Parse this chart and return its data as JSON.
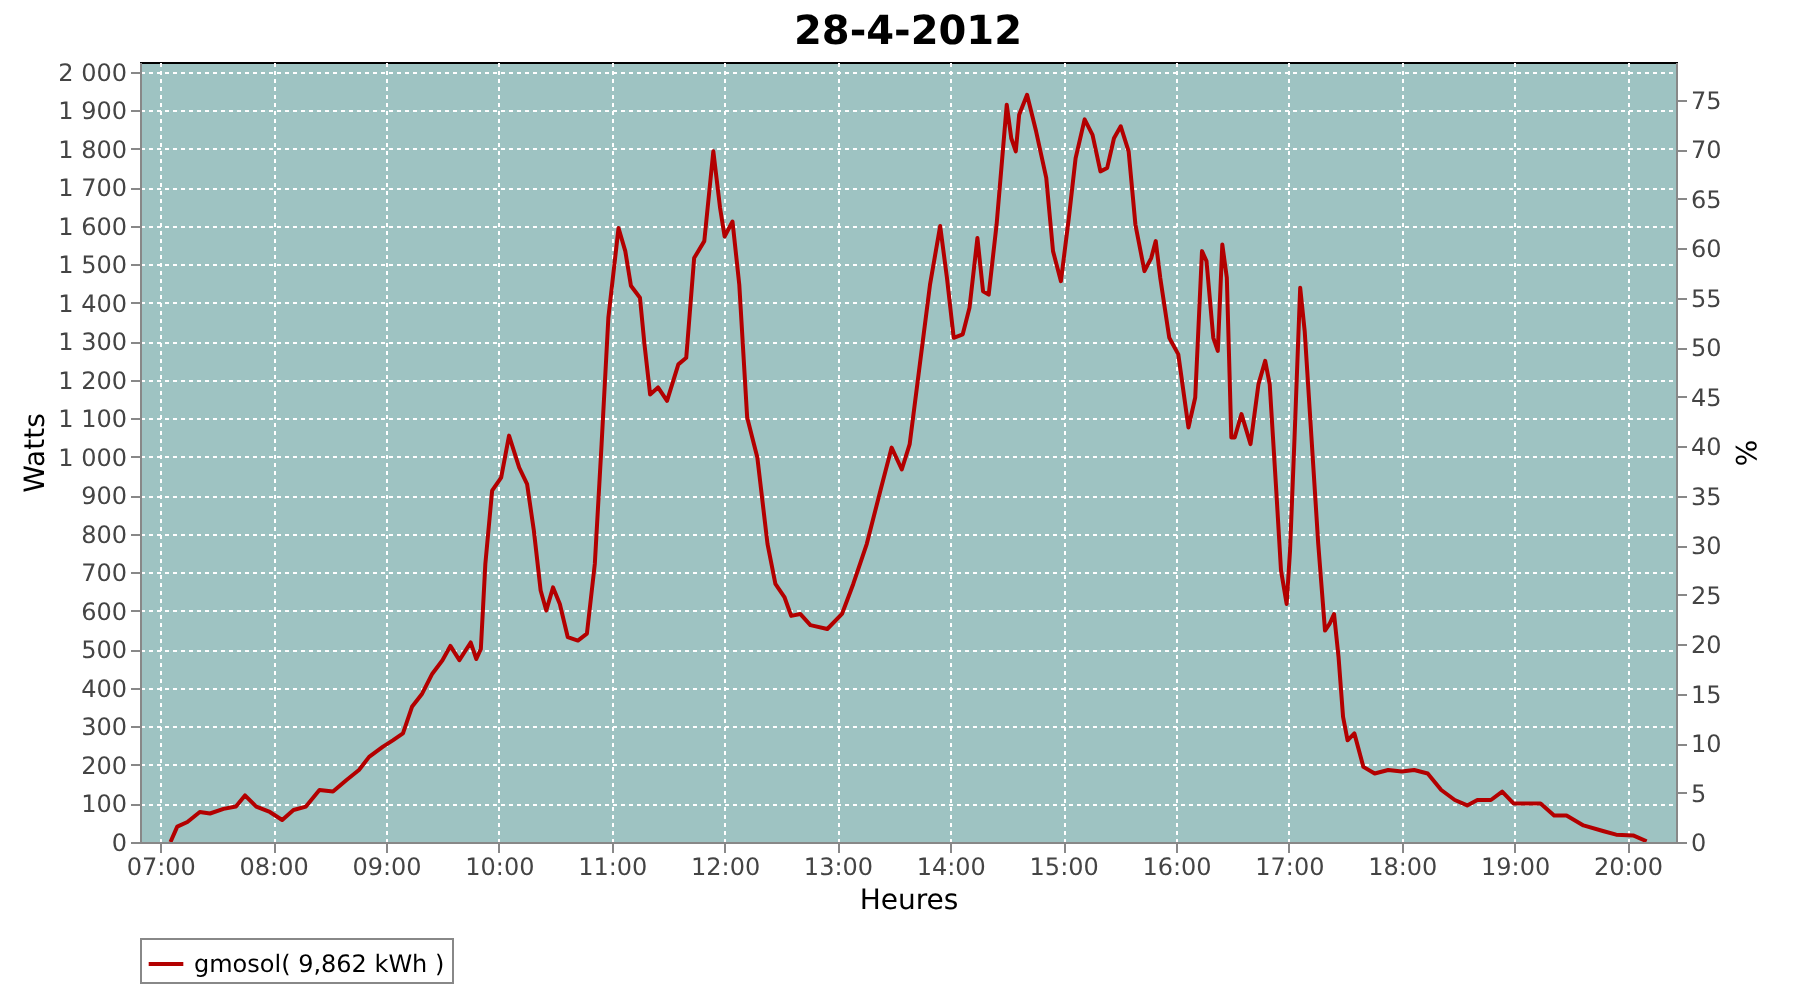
{
  "chart_data": {
    "type": "line",
    "title": "28-4-2012",
    "xlabel": "Heures",
    "ylabel": "Watts",
    "y2label": "%",
    "xlim": [
      6.82,
      20.43
    ],
    "xticks": [
      {
        "value": 7,
        "label": "07:00"
      },
      {
        "value": 8,
        "label": "08:00"
      },
      {
        "value": 9,
        "label": "09:00"
      },
      {
        "value": 10,
        "label": "10:00"
      },
      {
        "value": 11,
        "label": "11:00"
      },
      {
        "value": 12,
        "label": "12:00"
      },
      {
        "value": 13,
        "label": "13:00"
      },
      {
        "value": 14,
        "label": "14:00"
      },
      {
        "value": 15,
        "label": "15:00"
      },
      {
        "value": 16,
        "label": "16:00"
      },
      {
        "value": 17,
        "label": "17:00"
      },
      {
        "value": 18,
        "label": "18:00"
      },
      {
        "value": 19,
        "label": "19:00"
      },
      {
        "value": 20,
        "label": "20:00"
      }
    ],
    "ylim": [
      0,
      2025
    ],
    "yticks": [
      0,
      100,
      200,
      300,
      400,
      500,
      600,
      700,
      800,
      900,
      {
        "value": 1000,
        "label": "1 000"
      },
      {
        "value": 1100,
        "label": "1 100"
      },
      {
        "value": 1200,
        "label": "1 200"
      },
      {
        "value": 1300,
        "label": "1 300"
      },
      {
        "value": 1400,
        "label": "1 400"
      },
      {
        "value": 1500,
        "label": "1 500"
      },
      {
        "value": 1600,
        "label": "1 600"
      },
      {
        "value": 1700,
        "label": "1 700"
      },
      {
        "value": 1800,
        "label": "1 800"
      },
      {
        "value": 1900,
        "label": "1 900"
      },
      {
        "value": 2000,
        "label": "2 000"
      }
    ],
    "y2lim": [
      0,
      78.8
    ],
    "y2ticks": [
      0,
      5,
      10,
      15,
      20,
      25,
      30,
      35,
      40,
      45,
      50,
      55,
      60,
      65,
      70,
      75
    ],
    "grid": true,
    "legend": "bottom",
    "marker": "none",
    "line_style": "solid",
    "series": [
      {
        "name": "gmosol( 9,862 kWh )",
        "color": "#b30000",
        "x": [
          7.09,
          7.15,
          7.24,
          7.35,
          7.44,
          7.56,
          7.67,
          7.75,
          7.85,
          7.97,
          8.08,
          8.18,
          8.29,
          8.41,
          8.53,
          8.65,
          8.76,
          8.85,
          8.97,
          9.06,
          9.15,
          9.23,
          9.32,
          9.41,
          9.5,
          9.57,
          9.65,
          9.75,
          9.8,
          9.84,
          9.88,
          9.94,
          10.02,
          10.09,
          10.18,
          10.25,
          10.31,
          10.37,
          10.42,
          10.48,
          10.54,
          10.61,
          10.7,
          10.78,
          10.85,
          10.91,
          10.97,
          11.06,
          11.12,
          11.17,
          11.25,
          11.29,
          11.34,
          11.41,
          11.49,
          11.59,
          11.66,
          11.73,
          11.82,
          11.9,
          11.96,
          12.0,
          12.07,
          12.13,
          12.2,
          12.29,
          12.38,
          12.45,
          12.53,
          12.59,
          12.67,
          12.76,
          12.91,
          13.04,
          13.14,
          13.26,
          13.38,
          13.48,
          13.57,
          13.64,
          13.73,
          13.82,
          13.91,
          13.97,
          14.03,
          14.11,
          14.17,
          14.24,
          14.29,
          14.34,
          14.41,
          14.5,
          14.54,
          14.58,
          14.61,
          14.68,
          14.76,
          14.85,
          14.91,
          14.98,
          15.05,
          15.11,
          15.19,
          15.26,
          15.33,
          15.39,
          15.45,
          15.51,
          15.58,
          15.64,
          15.72,
          15.78,
          15.82,
          15.86,
          15.94,
          16.02,
          16.11,
          16.17,
          16.23,
          16.27,
          16.33,
          16.37,
          16.41,
          16.45,
          16.49,
          16.52,
          16.58,
          16.66,
          16.73,
          16.79,
          16.83,
          16.89,
          16.93,
          16.98,
          17.01,
          17.05,
          17.1,
          17.14,
          17.2,
          17.26,
          17.32,
          17.36,
          17.4,
          17.44,
          17.48,
          17.52,
          17.58,
          17.66,
          17.76,
          17.88,
          18.0,
          18.11,
          18.23,
          18.35,
          18.47,
          18.58,
          18.67,
          18.79,
          18.89,
          18.99,
          19.11,
          19.23,
          19.35,
          19.46,
          19.61,
          19.79,
          19.9,
          20.05,
          20.17
        ],
        "values": [
          0,
          40,
          52,
          78,
          74,
          86,
          92,
          121,
          92,
          78,
          57,
          83,
          92,
          135,
          131,
          161,
          187,
          221,
          247,
          264,
          282,
          351,
          385,
          437,
          472,
          509,
          472,
          518,
          475,
          501,
          722,
          912,
          946,
          1055,
          972,
          929,
          808,
          653,
          601,
          661,
          618,
          532,
          523,
          541,
          722,
          1033,
          1361,
          1594,
          1534,
          1444,
          1413,
          1292,
          1162,
          1180,
          1145,
          1240,
          1257,
          1516,
          1560,
          1793,
          1646,
          1572,
          1611,
          1447,
          1102,
          998,
          774,
          670,
          636,
          587,
          592,
          563,
          553,
          592,
          670,
          774,
          912,
          1024,
          967,
          1033,
          1240,
          1447,
          1599,
          1465,
          1309,
          1318,
          1387,
          1568,
          1430,
          1421,
          1603,
          1914,
          1827,
          1793,
          1888,
          1940,
          1845,
          1724,
          1534,
          1456,
          1620,
          1775,
          1876,
          1836,
          1741,
          1750,
          1827,
          1858,
          1793,
          1603,
          1482,
          1516,
          1560,
          1465,
          1309,
          1266,
          1076,
          1154,
          1534,
          1508,
          1309,
          1275,
          1551,
          1465,
          1050,
          1050,
          1111,
          1033,
          1188,
          1249,
          1188,
          903,
          705,
          618,
          756,
          1050,
          1439,
          1326,
          1050,
          774,
          549,
          566,
          592,
          480,
          325,
          264,
          282,
          195,
          178,
          187,
          183,
          187,
          178,
          135,
          109,
          95,
          109,
          109,
          131,
          100,
          100,
          100,
          69,
          69,
          43,
          28,
          19,
          17,
          2
        ]
      }
    ]
  }
}
